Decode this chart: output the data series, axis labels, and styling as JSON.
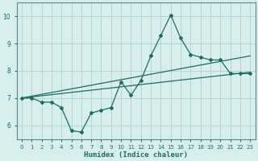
{
  "xlabel": "Humidex (Indice chaleur)",
  "bg_color": "#d8eeed",
  "grid_color": "#b2d4d0",
  "line_color": "#1e6b65",
  "spine_color": "#5a8a85",
  "xlim": [
    -0.5,
    23.5
  ],
  "ylim": [
    5.5,
    10.5
  ],
  "xticks": [
    0,
    1,
    2,
    3,
    4,
    5,
    6,
    7,
    8,
    9,
    10,
    11,
    12,
    13,
    14,
    15,
    16,
    17,
    18,
    19,
    20,
    21,
    22,
    23
  ],
  "yticks": [
    6,
    7,
    8,
    9,
    10
  ],
  "line1_x": [
    0,
    1,
    2,
    3,
    4,
    5,
    6,
    7,
    8,
    9,
    10,
    11,
    12,
    13,
    14,
    15,
    16,
    17,
    18,
    19,
    20,
    21,
    22,
    23
  ],
  "line1_y": [
    7.0,
    7.0,
    6.85,
    6.85,
    6.65,
    5.8,
    5.75,
    6.45,
    6.55,
    6.65,
    7.6,
    7.1,
    7.65,
    8.55,
    9.3,
    10.05,
    9.2,
    8.6,
    8.5,
    8.4,
    8.4,
    7.9,
    7.9,
    7.9
  ],
  "line2_x": [
    0,
    23
  ],
  "line2_y": [
    7.0,
    8.55
  ],
  "line3_x": [
    0,
    23
  ],
  "line3_y": [
    7.0,
    7.95
  ]
}
